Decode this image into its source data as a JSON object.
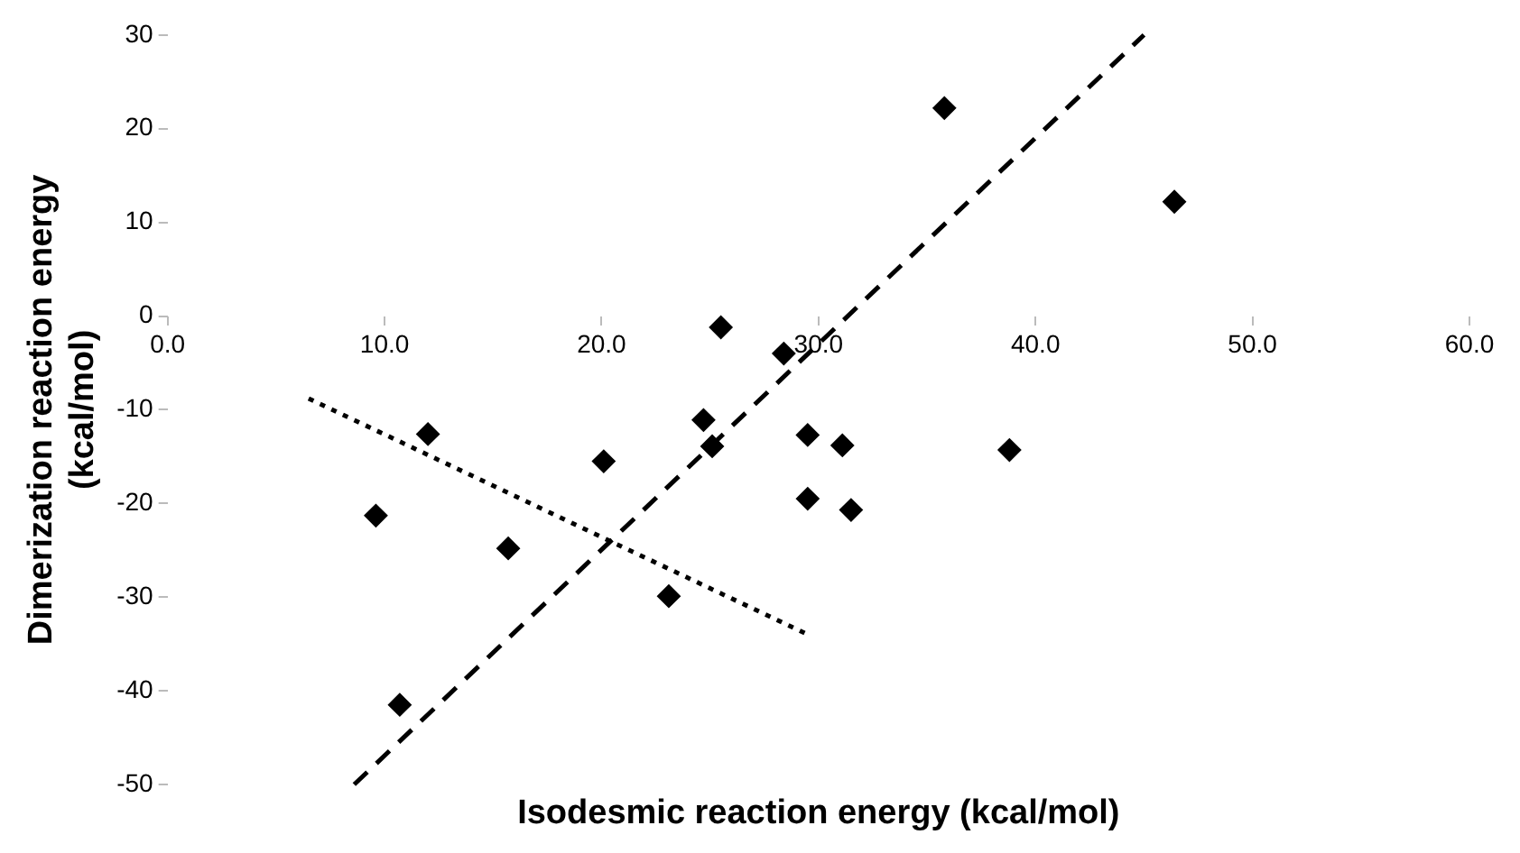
{
  "chart_data": {
    "type": "scatter",
    "xlabel": "Isodesmic reaction energy (kcal/mol)",
    "ylabel": "Dimerization reaction energy\n(kcal/mol)",
    "xlim": [
      0,
      60
    ],
    "ylim": [
      -50,
      30
    ],
    "xticks": [
      {
        "value": 0,
        "label": "0.0"
      },
      {
        "value": 10,
        "label": "10.0"
      },
      {
        "value": 20,
        "label": "20.0"
      },
      {
        "value": 30,
        "label": "30.0"
      },
      {
        "value": 40,
        "label": "40.0"
      },
      {
        "value": 50,
        "label": "50.0"
      },
      {
        "value": 60,
        "label": "60.0"
      }
    ],
    "yticks": [
      -50,
      -40,
      -30,
      -20,
      -10,
      0,
      10,
      20,
      30
    ],
    "grid": false,
    "legend": false,
    "series": [
      {
        "marker": "diamond",
        "color": "#000000",
        "x": [
          25.5,
          28.4,
          35.8,
          46.4,
          12.0,
          9.6,
          15.7,
          20.1,
          24.7,
          25.1,
          23.1,
          29.5,
          31.1,
          29.5,
          31.5,
          10.7,
          38.8
        ],
        "values": [
          -1.2,
          -4.0,
          22.2,
          12.2,
          -12.6,
          -21.3,
          -24.8,
          -15.5,
          -11.1,
          -13.9,
          -29.9,
          -12.7,
          -13.8,
          -19.5,
          -20.7,
          -41.5,
          -14.3
        ]
      },
      {
        "type": "line",
        "line_style": "dashed",
        "marker": "none",
        "color": "#000000",
        "x": [
          8.6,
          45.0
        ],
        "values": [
          -50,
          30
        ]
      },
      {
        "type": "line",
        "line_style": "dotted",
        "marker": "none",
        "color": "#000000",
        "x": [
          6.5,
          29.6
        ],
        "values": [
          -8.8,
          -34.1
        ]
      }
    ]
  }
}
